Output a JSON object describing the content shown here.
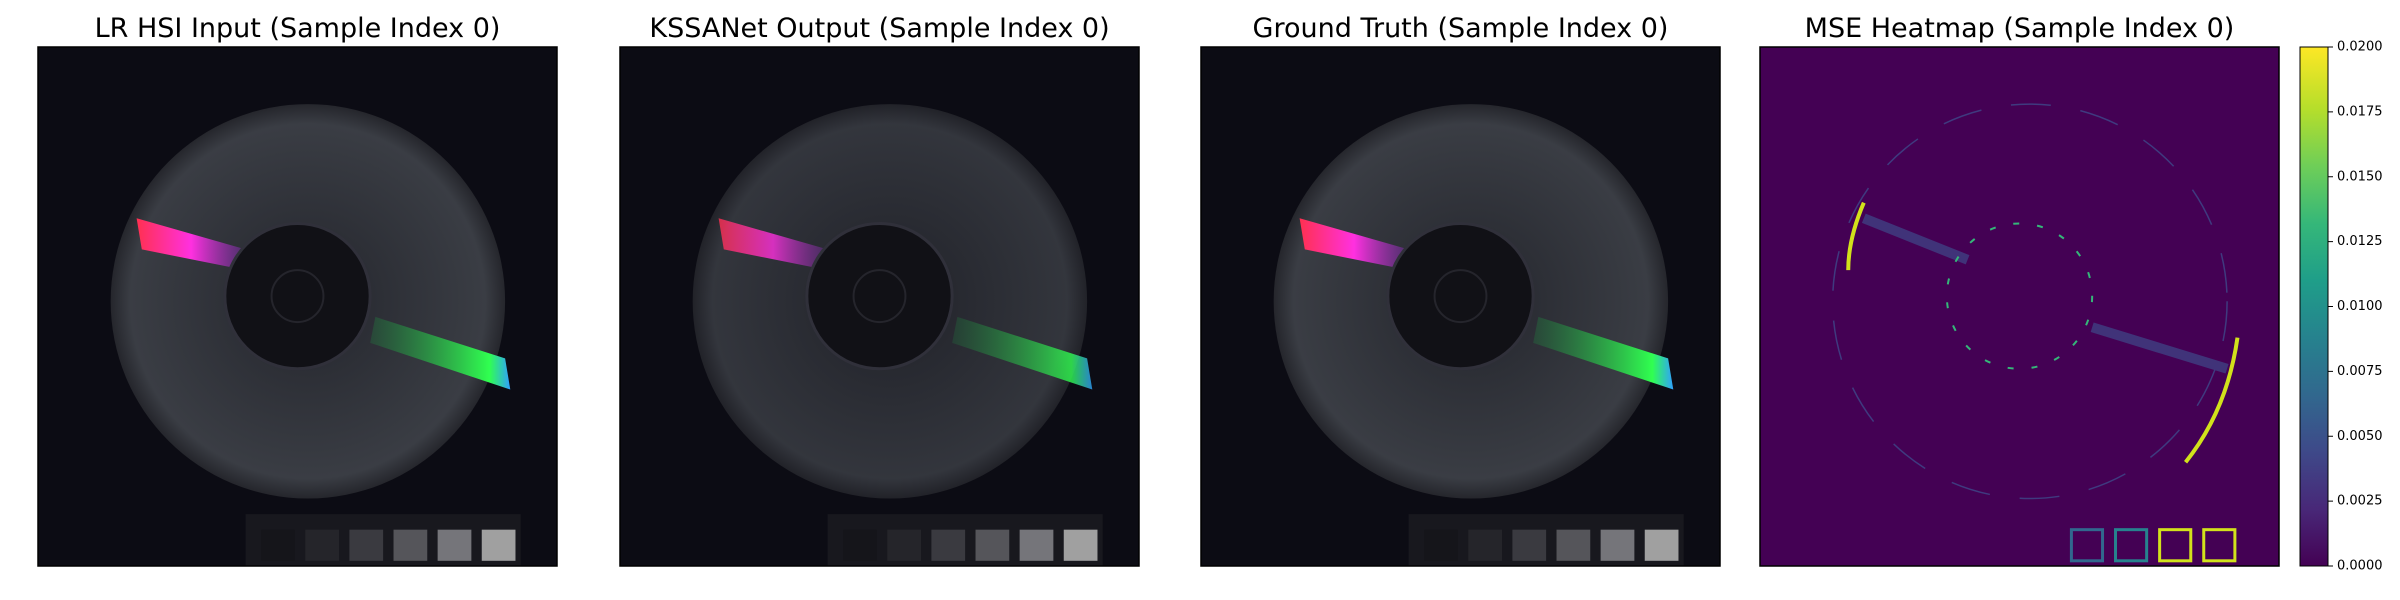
{
  "chart_data": [
    {
      "type": "image",
      "title": "LR HSI Input (Sample Index 0)"
    },
    {
      "type": "image",
      "title": "KSSANet Output (Sample Index 0)"
    },
    {
      "type": "image",
      "title": "Ground Truth (Sample Index 0)"
    },
    {
      "type": "heatmap",
      "title": "MSE Heatmap (Sample Index 0)",
      "colormap": "viridis",
      "zlim": [
        0,
        0.02
      ],
      "zticks": [
        {
          "value": 0,
          "label": "0.0000"
        },
        {
          "value": 0.0025,
          "label": "0.0025"
        },
        {
          "value": 0.005,
          "label": "0.0050"
        },
        {
          "value": 0.0075,
          "label": "0.0075"
        },
        {
          "value": 0.01,
          "label": "0.0100"
        },
        {
          "value": 0.0125,
          "label": "0.0125"
        },
        {
          "value": 0.015,
          "label": "0.0150"
        },
        {
          "value": 0.0175,
          "label": "0.0175"
        },
        {
          "value": 0.02,
          "label": "0.0200"
        }
      ]
    }
  ]
}
